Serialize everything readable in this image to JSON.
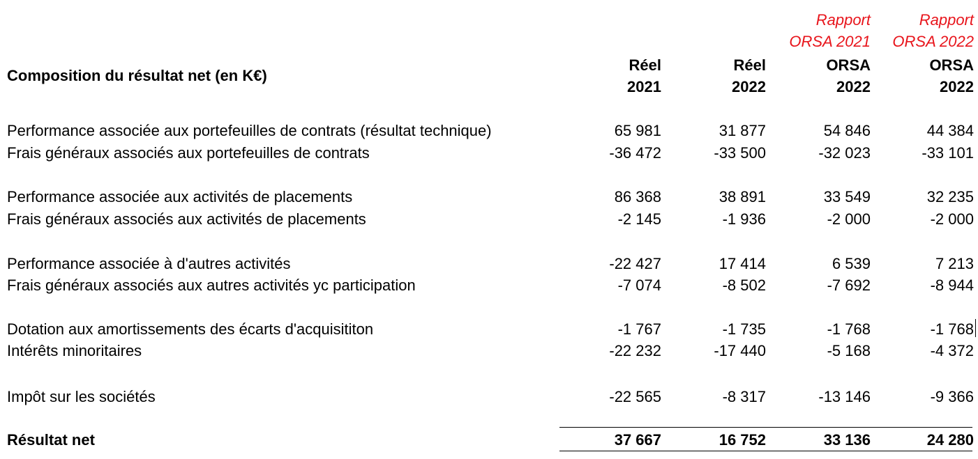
{
  "table": {
    "title": "Composition du résultat net (en K€)",
    "header_top": {
      "c3": [
        "Rapport",
        "ORSA 2021"
      ],
      "c4": [
        "Rapport",
        "ORSA 2022"
      ],
      "color": "#e8141b"
    },
    "header": [
      {
        "line1": "Réel",
        "line2": "2021"
      },
      {
        "line1": "Réel",
        "line2": "2022"
      },
      {
        "line1": "ORSA",
        "line2": "2022"
      },
      {
        "line1": "ORSA",
        "line2": "2022"
      }
    ],
    "rows": [
      {
        "label": "Performance associée aux portefeuilles de contrats (résultat technique)",
        "values": [
          "65 981",
          "31 877",
          "54 846",
          "44 384"
        ]
      },
      {
        "label": "Frais généraux associés aux portefeuilles de contrats",
        "values": [
          "-36 472",
          "-33 500",
          "-32 023",
          "-33 101"
        ]
      },
      {
        "label": "Performance associée aux activités de placements",
        "values": [
          "86 368",
          "38 891",
          "33 549",
          "32 235"
        ]
      },
      {
        "label": "Frais généraux associés aux activités de placements",
        "values": [
          "-2 145",
          "-1 936",
          "-2 000",
          "-2 000"
        ]
      },
      {
        "label": "Performance associée à d'autres activités",
        "values": [
          "-22 427",
          "17 414",
          "6 539",
          "7 213"
        ]
      },
      {
        "label": "Frais généraux associés aux autres activités yc participation",
        "values": [
          "-7 074",
          "-8 502",
          "-7 692",
          "-8 944"
        ]
      },
      {
        "label": "Dotation aux amortissements des écarts d'acquisititon",
        "values": [
          "-1 767",
          "-1 735",
          "-1 768",
          "-1 768"
        ]
      },
      {
        "label": "Intérêts minoritaires",
        "values": [
          "-22 232",
          "-17 440",
          "-5 168",
          "-4 372"
        ]
      },
      {
        "label": "Impôt sur les sociétés",
        "values": [
          "-22 565",
          "-8 317",
          "-13 146",
          "-9 366"
        ]
      }
    ],
    "total": {
      "label": "Résultat net",
      "values": [
        "37 667",
        "16 752",
        "33 136",
        "24 280"
      ]
    }
  }
}
